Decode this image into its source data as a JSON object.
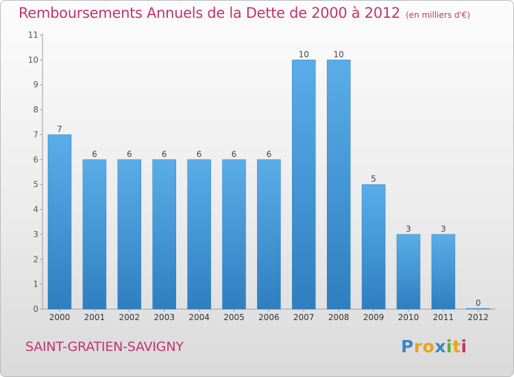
{
  "chart_data": {
    "type": "bar",
    "title": "Remboursements Annuels de la Dette de 2000 à 2012",
    "subtitle": "(en milliers d'€)",
    "categories": [
      "2000",
      "2001",
      "2002",
      "2003",
      "2004",
      "2005",
      "2006",
      "2007",
      "2008",
      "2009",
      "2010",
      "2011",
      "2012"
    ],
    "values": [
      7,
      6,
      6,
      6,
      6,
      6,
      6,
      10,
      10,
      5,
      3,
      3,
      0
    ],
    "ylim": [
      0,
      11
    ],
    "yticks": [
      0,
      1,
      2,
      3,
      4,
      5,
      6,
      7,
      8,
      9,
      10,
      11
    ],
    "xlabel": "",
    "ylabel": "",
    "bar_color": "#4e9fdc",
    "grid": false
  },
  "commune": "SAINT-GRATIEN-SAVIGNY",
  "logo": {
    "letters": [
      "P",
      "r",
      "o",
      "x",
      "i",
      "t",
      "i"
    ],
    "colors": [
      "#3d86c6",
      "#e8a21e",
      "#e8a21e",
      "#3d86c6",
      "#5fae2e",
      "#e8a21e",
      "#c2336a"
    ]
  },
  "colors": {
    "accent": "#c2336a"
  }
}
